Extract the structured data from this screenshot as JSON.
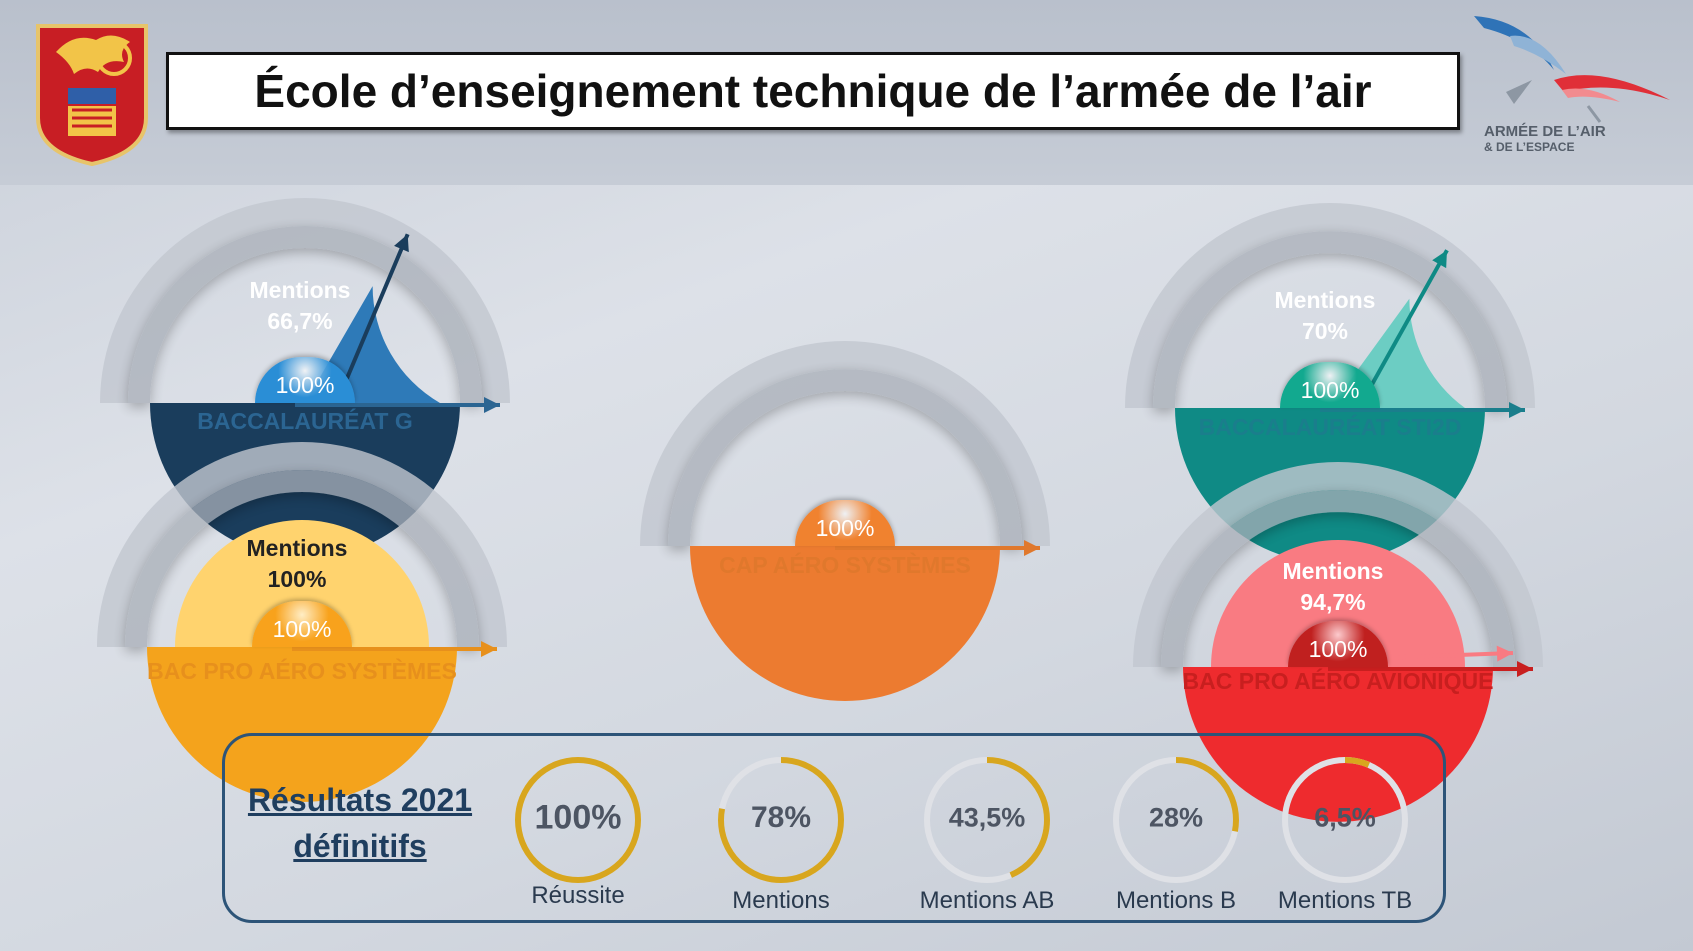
{
  "header": {
    "title": "École d’enseignement technique de l’armée de l’air",
    "logo_text_line1": "ARMÉE DE L’AIR",
    "logo_text_line2": "& DE L’ESPACE"
  },
  "chart_data": [
    {
      "type": "gauge",
      "name": "BACCALAURÉAT G",
      "title": "BACCALAURÉAT G",
      "success_label": "100%",
      "mentions_label": "Mentions",
      "mentions_value_label": "66,7%",
      "success": 100,
      "mentions": 66.7,
      "color_main": "#1a3d5c",
      "color_inner": "#2e7ab8",
      "color_badge": "#2a8ed6",
      "color_label": "#2b6592"
    },
    {
      "type": "gauge",
      "name": "BACCALAURÉAT STI2D",
      "title": "BACCALAURÉAT STI2D",
      "success_label": "100%",
      "mentions_label": "Mentions",
      "mentions_value_label": "70%",
      "success": 100,
      "mentions": 70,
      "color_main": "#0f8a85",
      "color_inner": "#6ccdc3",
      "color_badge": "#12a98f",
      "color_label": "#1a7e8c"
    },
    {
      "type": "gauge",
      "name": "CAP AÉRO SYSTÈMES",
      "title": "CAP AÉRO SYSTÈMES",
      "success_label": "100%",
      "success": 100,
      "color_main": "#ec7b30",
      "color_badge": "#f0822f",
      "color_label": "#e0782c"
    },
    {
      "type": "gauge",
      "name": "BAC PRO AÉRO SYSTÈMES",
      "title": "BAC PRO AÉRO SYSTÈMES",
      "success_label": "100%",
      "mentions_label": "Mentions",
      "mentions_value_label": "100%",
      "success": 100,
      "mentions": 100,
      "color_main": "#f4a31c",
      "color_inner": "#ffd36e",
      "color_badge": "#f8a21c",
      "color_label": "#e7901c"
    },
    {
      "type": "gauge",
      "name": "BAC PRO AÉRO AVIONIQUE",
      "title": "BAC PRO AÉRO AVIONIQUE",
      "success_label": "100%",
      "mentions_label": "Mentions",
      "mentions_value_label": "94,7%",
      "success": 100,
      "mentions": 94.7,
      "color_main": "#ee2b2e",
      "color_inner": "#f97b82",
      "color_badge": "#c0201f",
      "color_label": "#c81f1f"
    }
  ],
  "results": {
    "title_line1": "Résultats 2021",
    "title_line2": "définitifs",
    "ring_color": "#d8a61e",
    "track_color": "#dfe1e6",
    "items": [
      {
        "value_label": "100%",
        "value": 100,
        "label": "Réussite"
      },
      {
        "value_label": "78%",
        "value": 78,
        "label": "Mentions"
      },
      {
        "value_label": "43,5%",
        "value": 43.5,
        "label": "Mentions AB"
      },
      {
        "value_label": "28%",
        "value": 28,
        "label": "Mentions B"
      },
      {
        "value_label": "6,5%",
        "value": 6.5,
        "label": "Mentions TB"
      }
    ]
  }
}
